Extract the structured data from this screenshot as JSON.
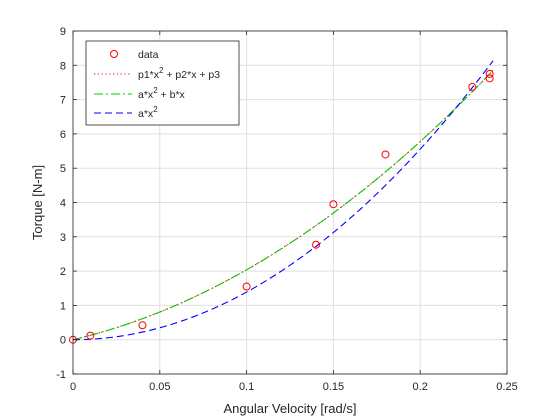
{
  "chart_data": {
    "type": "scatter",
    "xlabel": "Angular Velocity [rad/s]",
    "ylabel": "Torque [N-m]",
    "xlim": [
      0,
      0.25
    ],
    "ylim": [
      -1,
      9
    ],
    "xticks": [
      0,
      0.05,
      0.1,
      0.15,
      0.2,
      0.25
    ],
    "xtick_labels": [
      "0",
      "0.05",
      "0.1",
      "0.15",
      "0.2",
      "0.25"
    ],
    "yticks": [
      -1,
      0,
      1,
      2,
      3,
      4,
      5,
      6,
      7,
      8,
      9
    ],
    "ytick_labels": [
      "-1",
      "0",
      "1",
      "2",
      "3",
      "4",
      "5",
      "6",
      "7",
      "8",
      "9"
    ],
    "grid": true,
    "legend_position": "top-left",
    "series": [
      {
        "name": "data",
        "kind": "markers",
        "marker": "circle",
        "color": "#ff0000",
        "x": [
          0,
          0.01,
          0.04,
          0.1,
          0.14,
          0.15,
          0.18,
          0.23,
          0.24,
          0.24
        ],
        "y": [
          0,
          0.12,
          0.42,
          1.55,
          2.77,
          3.95,
          5.4,
          7.37,
          7.62,
          7.75
        ]
      },
      {
        "name": "p1*x^2 + p2*x + p3",
        "legend_base": "p1*x",
        "legend_sup": "2",
        "legend_rest": " + p2*x + p3",
        "kind": "curve",
        "style": "dotted",
        "color": "#ff0000",
        "coefficients": {
          "p1": 84.9,
          "p2": 11.9,
          "p3": 0.0
        }
      },
      {
        "name": "a*x^2 + b*x",
        "legend_base": "a*x",
        "legend_sup": "2",
        "legend_rest": " + b*x",
        "kind": "curve",
        "style": "dash-dot",
        "color": "#00cc00",
        "coefficients": {
          "a": 84.9,
          "b": 11.9
        }
      },
      {
        "name": "a*x^2",
        "legend_base": "a*x",
        "legend_sup": "2",
        "legend_rest": "",
        "kind": "curve",
        "style": "dashed",
        "color": "#0000ff",
        "coefficients": {
          "a": 138.9
        }
      }
    ]
  }
}
